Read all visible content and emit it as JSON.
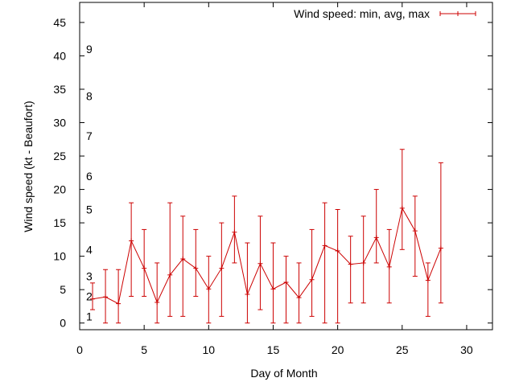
{
  "chart_data": {
    "type": "line",
    "title": "",
    "xlabel": "Day of Month",
    "ylabel": "Wind speed (kt - Beaufort)",
    "xlim": [
      0,
      32
    ],
    "ylim": [
      -1,
      48
    ],
    "x_ticks": [
      0,
      5,
      10,
      15,
      20,
      25,
      30
    ],
    "y_ticks": [
      0,
      5,
      10,
      15,
      20,
      25,
      30,
      35,
      40,
      45
    ],
    "grid": false,
    "legend_position": "top-right",
    "beaufort_labels": [
      {
        "label": "1",
        "y": 1
      },
      {
        "label": "2",
        "y": 4
      },
      {
        "label": "3",
        "y": 7
      },
      {
        "label": "4",
        "y": 11
      },
      {
        "label": "5",
        "y": 17
      },
      {
        "label": "6",
        "y": 22
      },
      {
        "label": "7",
        "y": 28
      },
      {
        "label": "8",
        "y": 34
      },
      {
        "label": "9",
        "y": 41
      }
    ],
    "series": [
      {
        "name": "Wind speed: min, avg, max",
        "color": "#cc0000",
        "x": [
          1,
          2,
          3,
          4,
          5,
          6,
          7,
          8,
          9,
          10,
          11,
          12,
          13,
          14,
          15,
          16,
          17,
          18,
          19,
          20,
          21,
          22,
          23,
          24,
          25,
          26,
          27,
          28
        ],
        "avg": [
          3.6,
          3.9,
          2.9,
          12.3,
          8.2,
          3.1,
          7.2,
          9.6,
          8.2,
          5.1,
          8.2,
          13.6,
          4.3,
          8.9,
          5.1,
          6.1,
          3.8,
          6.5,
          11.6,
          10.8,
          8.8,
          9.0,
          12.8,
          8.4,
          17.2,
          13.8,
          6.4,
          11.2
        ],
        "min": [
          2,
          0,
          0,
          4,
          4,
          0,
          1,
          1,
          4,
          0,
          1,
          9,
          0,
          2,
          0,
          0,
          0,
          1,
          0,
          0,
          3,
          3,
          9,
          3,
          11,
          7,
          1,
          3
        ],
        "max": [
          6,
          8,
          8,
          18,
          14,
          9,
          18,
          16,
          14,
          10,
          15,
          19,
          12,
          16,
          12,
          10,
          9,
          14,
          18,
          17,
          13,
          16,
          20,
          14,
          26,
          19,
          9,
          24
        ]
      }
    ]
  }
}
